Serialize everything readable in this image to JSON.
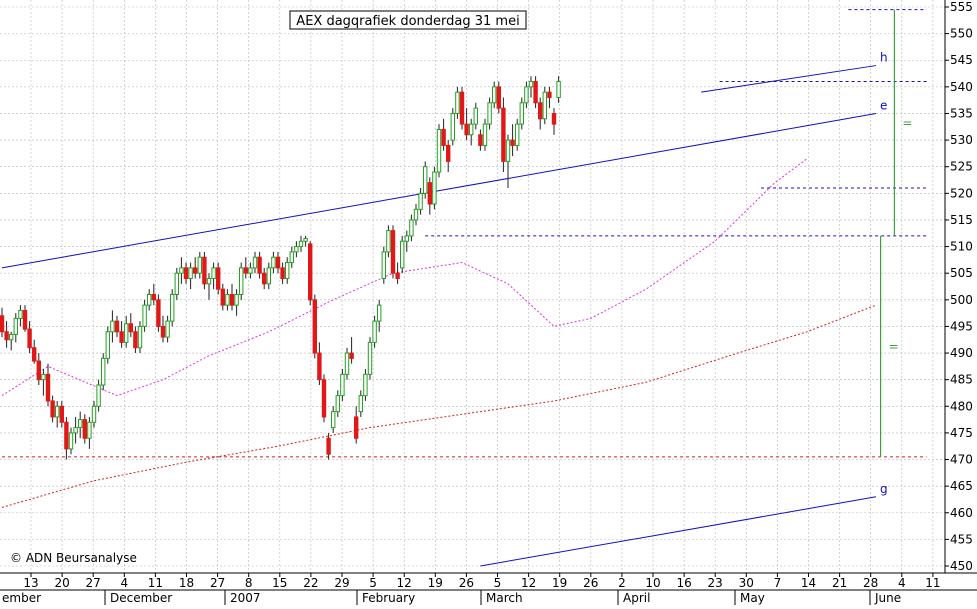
{
  "colors": {
    "up": "#22a022",
    "down": "#e01818",
    "wick": "#222222",
    "ma_short": "#e030e0",
    "ma_long": "#d02020",
    "trendline": "#1010c0",
    "gridline": "#b8b8b8",
    "target_lines": "#40a040"
  },
  "chart_data": {
    "type": "candlestick",
    "title": "AEX dagqrafiek donderdag 31 mei",
    "credit": "© ADN Beursanalyse",
    "y_axis": {
      "side": "right",
      "min": 450,
      "max": 555,
      "ticks": [
        450,
        455,
        460,
        465,
        470,
        475,
        480,
        485,
        490,
        495,
        500,
        505,
        510,
        515,
        520,
        525,
        530,
        535,
        540,
        545,
        550,
        555
      ]
    },
    "x_axis": {
      "tick_labels": [
        "13",
        "20",
        "27",
        "4",
        "11",
        "18",
        "27",
        "8",
        "15",
        "22",
        "29",
        "5",
        "12",
        "19",
        "26",
        "5",
        "12",
        "19",
        "26",
        "2",
        "10",
        "16",
        "23",
        "30",
        "7",
        "14",
        "21",
        "28",
        "4",
        "11"
      ],
      "month_labels": [
        "ember",
        "December",
        "2007",
        "February",
        "March",
        "April",
        "May",
        "June"
      ]
    },
    "candles": [
      [
        497.0,
        498.5,
        493.0,
        494.0
      ],
      [
        494.0,
        496.0,
        491.0,
        492.5
      ],
      [
        492.5,
        494.0,
        490.5,
        493.5
      ],
      [
        493.5,
        497.5,
        492.0,
        496.5
      ],
      [
        496.5,
        499.0,
        495.0,
        498.0
      ],
      [
        498.0,
        499.0,
        494.0,
        494.5
      ],
      [
        494.5,
        496.0,
        490.0,
        491.0
      ],
      [
        491.0,
        492.5,
        488.0,
        488.5
      ],
      [
        488.5,
        490.0,
        484.0,
        485.0
      ],
      [
        485.0,
        487.0,
        482.0,
        486.0
      ],
      [
        486.0,
        488.0,
        480.0,
        481.0
      ],
      [
        481.0,
        482.0,
        477.0,
        478.0
      ],
      [
        478.0,
        481.0,
        476.0,
        480.0
      ],
      [
        480.0,
        481.0,
        476.0,
        477.0
      ],
      [
        477.0,
        478.0,
        470.0,
        472.0
      ],
      [
        472.0,
        476.0,
        471.0,
        475.0
      ],
      [
        475.0,
        478.0,
        473.0,
        476.0
      ],
      [
        476.0,
        479.0,
        474.0,
        477.5
      ],
      [
        477.5,
        478.5,
        473.0,
        474.0
      ],
      [
        474.0,
        478.0,
        472.0,
        477.0
      ],
      [
        477.0,
        481.0,
        476.0,
        480.0
      ],
      [
        480.0,
        485.0,
        479.0,
        484.0
      ],
      [
        484.0,
        490.0,
        483.0,
        489.0
      ],
      [
        489.0,
        495.0,
        488.0,
        494.0
      ],
      [
        494.0,
        498.0,
        492.0,
        496.0
      ],
      [
        496.0,
        497.0,
        493.0,
        494.0
      ],
      [
        494.0,
        496.0,
        491.0,
        492.0
      ],
      [
        492.0,
        497.0,
        491.0,
        495.5
      ],
      [
        495.5,
        497.5,
        493.0,
        494.0
      ],
      [
        494.0,
        495.0,
        490.0,
        491.0
      ],
      [
        491.0,
        496.0,
        490.0,
        495.0
      ],
      [
        495.0,
        500.0,
        494.0,
        499.0
      ],
      [
        499.0,
        502.0,
        498.0,
        501.0
      ],
      [
        501.0,
        503.0,
        499.0,
        500.0
      ],
      [
        500.0,
        501.0,
        494.0,
        495.0
      ],
      [
        495.0,
        497.0,
        492.0,
        493.0
      ],
      [
        493.0,
        497.0,
        492.0,
        496.0
      ],
      [
        496.0,
        502.0,
        495.0,
        501.0
      ],
      [
        501.0,
        506.0,
        500.0,
        505.0
      ],
      [
        505.0,
        508.0,
        503.0,
        506.0
      ],
      [
        506.0,
        507.0,
        503.0,
        504.0
      ],
      [
        504.0,
        507.0,
        502.0,
        506.0
      ],
      [
        506.0,
        508.0,
        504.0,
        505.0
      ],
      [
        505.0,
        509.0,
        504.0,
        508.0
      ],
      [
        508.0,
        509.0,
        502.0,
        503.0
      ],
      [
        503.0,
        505.0,
        500.0,
        504.0
      ],
      [
        504.0,
        507.0,
        502.0,
        506.0
      ],
      [
        506.0,
        507.0,
        501.0,
        502.0
      ],
      [
        502.0,
        503.0,
        498.0,
        499.0
      ],
      [
        499.0,
        502.0,
        498.0,
        501.0
      ],
      [
        501.0,
        503.0,
        498.0,
        499.0
      ],
      [
        499.0,
        502.0,
        497.0,
        501.0
      ],
      [
        501.0,
        507.0,
        500.0,
        506.0
      ],
      [
        506.0,
        508.0,
        504.0,
        505.0
      ],
      [
        505.0,
        507.0,
        504.0,
        506.0
      ],
      [
        506.0,
        509.0,
        505.0,
        508.0
      ],
      [
        508.0,
        509.0,
        504.0,
        505.0
      ],
      [
        505.0,
        506.0,
        502.0,
        503.0
      ],
      [
        503.0,
        507.0,
        502.0,
        506.0
      ],
      [
        506.0,
        509.0,
        505.0,
        508.0
      ],
      [
        508.0,
        509.0,
        505.0,
        506.0
      ],
      [
        506.0,
        507.0,
        503.0,
        504.0
      ],
      [
        504.0,
        508.0,
        503.0,
        507.0
      ],
      [
        507.0,
        510.0,
        506.0,
        509.0
      ],
      [
        509.0,
        511.0,
        508.0,
        510.0
      ],
      [
        510.0,
        512.0,
        509.0,
        511.0
      ],
      [
        511.0,
        512.0,
        510.0,
        511.5
      ],
      [
        510.5,
        511.0,
        499.0,
        500.0
      ],
      [
        500.0,
        501.0,
        489.0,
        490.0
      ],
      [
        490.0,
        492.0,
        484.0,
        485.0
      ],
      [
        485.0,
        486.0,
        477.0,
        478.0
      ],
      [
        474.0,
        475.0,
        470.0,
        471.0
      ],
      [
        476.0,
        480.0,
        475.0,
        479.0
      ],
      [
        479.0,
        483.0,
        478.0,
        482.0
      ],
      [
        482.0,
        487.0,
        481.0,
        486.0
      ],
      [
        486.0,
        491.0,
        485.0,
        490.0
      ],
      [
        490.0,
        493.0,
        488.0,
        489.0
      ],
      [
        478.0,
        480.0,
        473.0,
        474.0
      ],
      [
        479.0,
        483.0,
        478.0,
        482.0
      ],
      [
        482.0,
        487.0,
        481.0,
        486.0
      ],
      [
        486.0,
        493.0,
        485.0,
        492.0
      ],
      [
        492.0,
        497.0,
        491.0,
        496.0
      ],
      [
        496.0,
        500.0,
        494.0,
        499.0
      ],
      [
        504.0,
        510.0,
        503.0,
        509.0
      ],
      [
        509.0,
        514.0,
        508.0,
        513.0
      ],
      [
        513.0,
        514.0,
        504.0,
        505.0
      ],
      [
        505.0,
        507.0,
        503.0,
        504.0
      ],
      [
        506.0,
        512.0,
        505.0,
        511.0
      ],
      [
        511.0,
        513.0,
        509.0,
        512.0
      ],
      [
        512.0,
        516.0,
        511.0,
        515.0
      ],
      [
        515.0,
        518.0,
        514.0,
        517.0
      ],
      [
        517.0,
        521.0,
        516.0,
        520.0
      ],
      [
        520.0,
        526.0,
        519.0,
        525.0
      ],
      [
        522.0,
        523.0,
        516.0,
        518.0
      ],
      [
        518.0,
        525.0,
        517.0,
        524.0
      ],
      [
        524.0,
        533.0,
        523.0,
        532.0
      ],
      [
        532.0,
        534.0,
        528.0,
        529.0
      ],
      [
        529.0,
        530.0,
        524.0,
        526.0
      ],
      [
        530.0,
        536.0,
        529.0,
        535.0
      ],
      [
        535.0,
        540.0,
        534.0,
        539.0
      ],
      [
        539.0,
        540.0,
        532.0,
        533.0
      ],
      [
        533.0,
        536.0,
        530.0,
        531.0
      ],
      [
        531.0,
        534.0,
        529.0,
        533.0
      ],
      [
        533.0,
        537.0,
        532.0,
        536.0
      ],
      [
        531.0,
        532.0,
        528.0,
        529.0
      ],
      [
        529.0,
        534.0,
        528.0,
        533.0
      ],
      [
        533.0,
        538.0,
        532.0,
        537.0
      ],
      [
        537.0,
        541.0,
        536.0,
        540.0
      ],
      [
        540.0,
        541.0,
        535.0,
        536.0
      ],
      [
        536.0,
        538.0,
        524.0,
        526.0
      ],
      [
        526.0,
        531.0,
        521.0,
        530.0
      ],
      [
        530.0,
        533.0,
        527.0,
        529.0
      ],
      [
        529.0,
        534.0,
        528.0,
        533.0
      ],
      [
        533.0,
        538.0,
        532.0,
        537.0
      ],
      [
        537.0,
        541.0,
        536.0,
        540.0
      ],
      [
        540.0,
        542.0,
        538.0,
        541.0
      ],
      [
        541.0,
        542.0,
        536.0,
        537.0
      ],
      [
        537.0,
        538.0,
        532.0,
        534.0
      ],
      [
        534.0,
        540.0,
        533.0,
        539.0
      ],
      [
        539.0,
        540.0,
        536.0,
        538.0
      ],
      [
        535.0,
        536.0,
        531.0,
        533.0
      ],
      [
        538.0,
        542.0,
        537.0,
        541.0
      ]
    ],
    "ma_short": [
      [
        0,
        482.0
      ],
      [
        10,
        487.5
      ],
      [
        25,
        482.0
      ],
      [
        35,
        485.0
      ],
      [
        45,
        489.5
      ],
      [
        58,
        494.0
      ],
      [
        72,
        500.0
      ],
      [
        85,
        505.0
      ],
      [
        100,
        507.0
      ],
      [
        110,
        503.0
      ],
      [
        120,
        495.0
      ],
      [
        128,
        496.5
      ],
      [
        140,
        502.0
      ],
      [
        155,
        511.0
      ],
      [
        168,
        522.0
      ],
      [
        175,
        526.5
      ]
    ],
    "ma_long": [
      [
        0,
        461.0
      ],
      [
        20,
        466.0
      ],
      [
        40,
        469.5
      ],
      [
        60,
        472.5
      ],
      [
        80,
        476.0
      ],
      [
        100,
        478.5
      ],
      [
        120,
        481.0
      ],
      [
        140,
        484.5
      ],
      [
        160,
        490.0
      ],
      [
        175,
        494.0
      ],
      [
        190,
        499.0
      ]
    ],
    "trendlines": [
      {
        "label": "h",
        "from": [
          152,
          539.0
        ],
        "to": [
          190,
          544.0
        ]
      },
      {
        "label": "e",
        "from": [
          0,
          506.0
        ],
        "to": [
          190,
          535.0
        ]
      },
      {
        "label": "g",
        "from": [
          104,
          450.0
        ],
        "to": [
          190,
          463.0
        ]
      }
    ],
    "levels": [
      {
        "value": 470.5,
        "from": 0,
        "to": 201,
        "color": "#d02020"
      },
      {
        "value": 512.0,
        "from": 92,
        "to": 201,
        "color": "#1010c0"
      },
      {
        "value": 541.0,
        "from": 156,
        "to": 201,
        "color": "#1010c0"
      },
      {
        "value": 521.0,
        "from": 165,
        "to": 201,
        "color": "#1010c0"
      },
      {
        "value": 554.5,
        "from": 184,
        "to": 201,
        "color": "#1010c0"
      }
    ],
    "targets": [
      {
        "x": 191,
        "from": 470.5,
        "to": 512.0,
        "label": "="
      },
      {
        "x": 194,
        "from": 512.0,
        "to": 554.5,
        "label": "="
      }
    ]
  }
}
